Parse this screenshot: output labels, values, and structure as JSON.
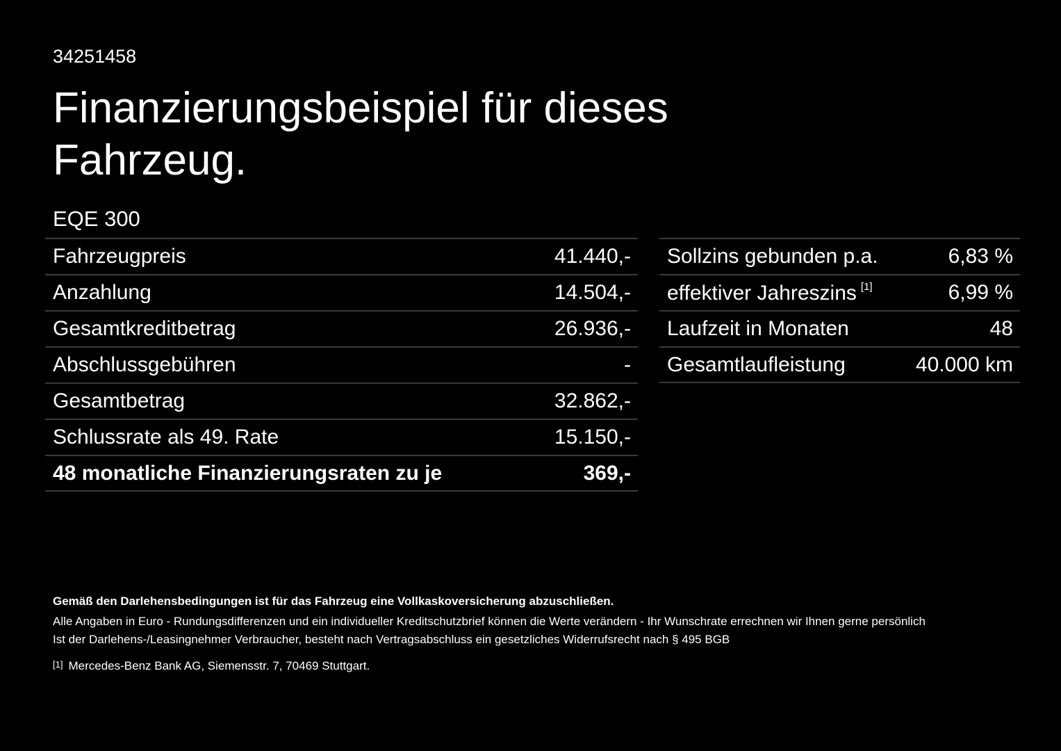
{
  "header": {
    "id": "34251458",
    "title": "Finanzierungsbeispiel für dieses Fahrzeug.",
    "model": "EQE 300"
  },
  "left_table": {
    "rows": [
      {
        "label": "Fahrzeugpreis",
        "value": "41.440,-"
      },
      {
        "label": "Anzahlung",
        "value": "14.504,-"
      },
      {
        "label": "Gesamtkreditbetrag",
        "value": "26.936,-"
      },
      {
        "label": "Abschlussgebühren",
        "value": "-"
      },
      {
        "label": "Gesamtbetrag",
        "value": "32.862,-"
      },
      {
        "label": "Schlussrate als 49. Rate",
        "value": "15.150,-"
      },
      {
        "label": "48 monatliche Finanzierungsraten zu je",
        "value": "369,-",
        "bold": true
      }
    ]
  },
  "right_table": {
    "rows": [
      {
        "label": "Sollzins gebunden p.a.",
        "value": "6,83 %"
      },
      {
        "label": "effektiver Jahreszins",
        "note": "[1]",
        "value": "6,99 %"
      },
      {
        "label": "Laufzeit in Monaten",
        "value": "48"
      },
      {
        "label": "Gesamtlaufleistung",
        "value": "40.000 km"
      }
    ]
  },
  "footer": {
    "notice": "Gemäß den Darlehensbedingungen ist für das Fahrzeug eine Vollkaskoversicherung abzuschließen.",
    "lines": [
      "Alle Angaben in Euro - Rundungsdifferenzen und ein individueller Kreditschutzbrief können die Werte verändern - Ihr Wunschrate errechnen wir Ihnen gerne persönlich",
      "Ist der Darlehens-/Leasingnehmer Verbraucher, besteht nach Vertragsabschluss ein gesetzliches Widerrufsrecht nach § 495 BGB"
    ],
    "footnote": {
      "marker": "[1]",
      "text": "Mercedes-Benz Bank AG, Siemensstr. 7, 70469 Stuttgart."
    }
  }
}
